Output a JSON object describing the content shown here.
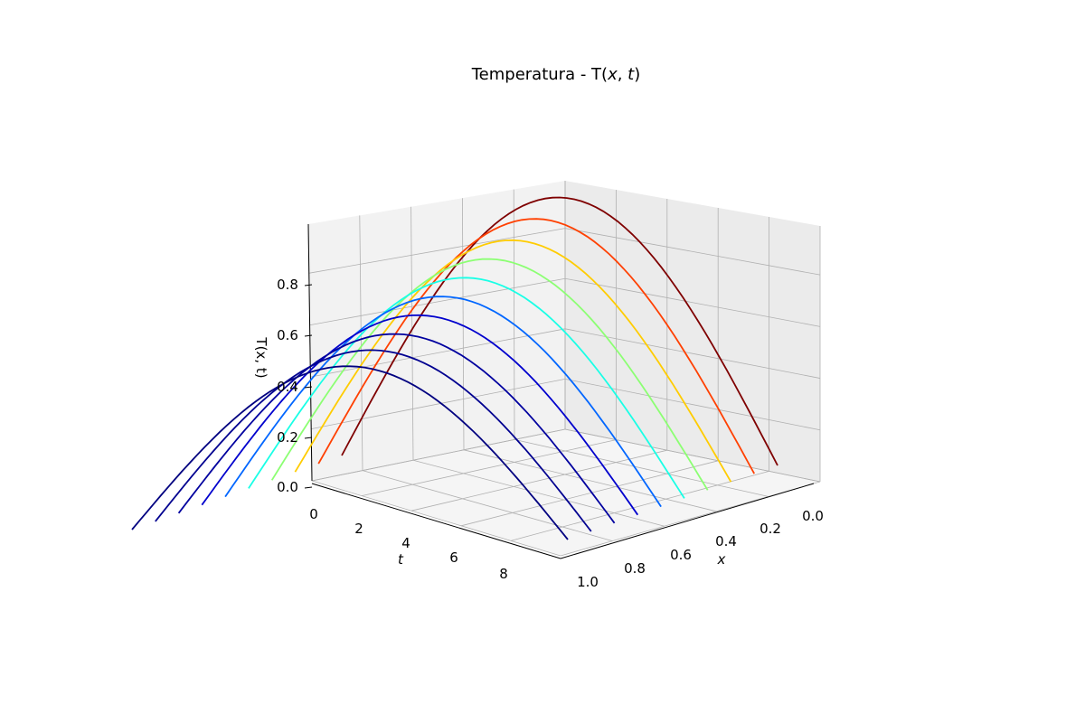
{
  "chart_data": {
    "type": "line",
    "title_prefix": "Temperatura - T(",
    "title_x": "x",
    "title_sep": ", ",
    "title_t": "t",
    "title_suffix": ")",
    "xlabel": "x",
    "ylabel": "t",
    "zlabel": "T(x, t)",
    "xlim": [
      0,
      1
    ],
    "ylim": [
      0,
      9
    ],
    "zlim": [
      0,
      1
    ],
    "xticks": [
      "0.0",
      "0.2",
      "0.4",
      "0.6",
      "0.8",
      "1.0"
    ],
    "yticks": [
      "0",
      "2",
      "4",
      "6",
      "8"
    ],
    "zticks": [
      "0.0",
      "0.2",
      "0.4",
      "0.6",
      "0.8"
    ],
    "grid": true,
    "colormap": "jet",
    "curve_shape": "T(x,t) ≈ peak·sin(πx)",
    "series": [
      {
        "t": 0,
        "peak": 1.0,
        "color": "#7f0000"
      },
      {
        "t": 1,
        "peak": 0.95,
        "color": "#ff4000"
      },
      {
        "t": 2,
        "peak": 0.9,
        "color": "#ffcc00"
      },
      {
        "t": 3,
        "peak": 0.86,
        "color": "#8cff73"
      },
      {
        "t": 4,
        "peak": 0.82,
        "color": "#19ffe6"
      },
      {
        "t": 5,
        "peak": 0.78,
        "color": "#0066ff"
      },
      {
        "t": 6,
        "peak": 0.74,
        "color": "#0000cd"
      },
      {
        "t": 7,
        "peak": 0.7,
        "color": "#00009f"
      },
      {
        "t": 8,
        "peak": 0.67,
        "color": "#000090"
      },
      {
        "t": 9,
        "peak": 0.64,
        "color": "#000080"
      }
    ]
  }
}
